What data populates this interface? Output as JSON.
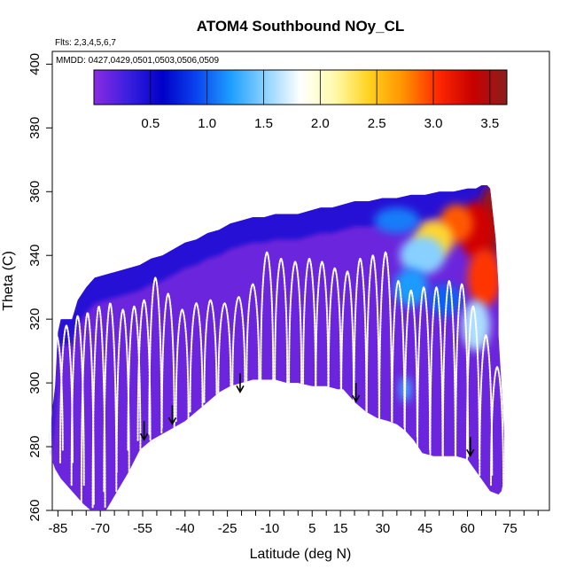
{
  "chart_data": {
    "type": "heatmap",
    "title": "ATOM4 Southbound NOy_CL",
    "flights_note": "Flts: 2,3,4,5,6,7",
    "dates_note": "MMDD: 0427,0429,0501,0503,0506,0509",
    "xlabel": "Latitude (deg N)",
    "ylabel": "Theta (C)",
    "xlim": [
      -87,
      89
    ],
    "ylim": [
      260,
      404
    ],
    "x_ticks": [
      -85,
      -70,
      -55,
      -40,
      -25,
      -10,
      5,
      15,
      30,
      45,
      60,
      75
    ],
    "x_tick_labels": [
      "-85",
      "-70",
      "-55",
      "-40",
      "-25",
      "-10",
      "5",
      "15",
      "30",
      "45",
      "60",
      "75"
    ],
    "x_minor_step": 5,
    "y_ticks": [
      260,
      280,
      300,
      320,
      340,
      360,
      380,
      400
    ],
    "y_tick_labels": [
      "260",
      "280",
      "300",
      "320",
      "340",
      "360",
      "380",
      "400"
    ],
    "colorbar": {
      "range": [
        0.0,
        3.65
      ],
      "ticks": [
        0.5,
        1.0,
        1.5,
        2.0,
        2.5,
        3.0,
        3.5
      ],
      "tick_labels": [
        "0.5",
        "1.0",
        "1.5",
        "2.0",
        "2.5",
        "3.0",
        "3.5"
      ],
      "colors": [
        "#8a2be2",
        "#3a1fe0",
        "#0000c8",
        "#0a46f0",
        "#1ea0ff",
        "#8fd3ff",
        "#ffffff",
        "#fffaaa",
        "#ffd21e",
        "#ff9100",
        "#ff2800",
        "#c80000",
        "#8c1e1e"
      ]
    },
    "field_upper_boundary": [
      [
        -88,
        284
      ],
      [
        -86,
        299
      ],
      [
        -85,
        316
      ],
      [
        -84,
        320
      ],
      [
        -80,
        320
      ],
      [
        -78,
        326
      ],
      [
        -75,
        330
      ],
      [
        -72,
        333
      ],
      [
        -68,
        334
      ],
      [
        -64,
        335
      ],
      [
        -60,
        336
      ],
      [
        -56,
        337
      ],
      [
        -52,
        339
      ],
      [
        -48,
        340
      ],
      [
        -44,
        342
      ],
      [
        -40,
        344
      ],
      [
        -36,
        345
      ],
      [
        -32,
        347
      ],
      [
        -28,
        348
      ],
      [
        -24,
        350
      ],
      [
        -20,
        351
      ],
      [
        -16,
        352
      ],
      [
        -12,
        352
      ],
      [
        -8,
        353
      ],
      [
        -4,
        353
      ],
      [
        0,
        353
      ],
      [
        4,
        354
      ],
      [
        8,
        355
      ],
      [
        12,
        355
      ],
      [
        16,
        356
      ],
      [
        20,
        357
      ],
      [
        25,
        357
      ],
      [
        30,
        358
      ],
      [
        35,
        358
      ],
      [
        40,
        359
      ],
      [
        45,
        359
      ],
      [
        50,
        360
      ],
      [
        55,
        360
      ],
      [
        60,
        361
      ],
      [
        63,
        361
      ],
      [
        65,
        362
      ],
      [
        67,
        362
      ],
      [
        68,
        361
      ]
    ],
    "field_lower_boundary": [
      [
        -88,
        278
      ],
      [
        -86,
        273
      ],
      [
        -84,
        270
      ],
      [
        -80,
        266
      ],
      [
        -76,
        262
      ],
      [
        -72,
        259
      ],
      [
        -68,
        260
      ],
      [
        -64,
        266
      ],
      [
        -60,
        272
      ],
      [
        -56,
        279
      ],
      [
        -52,
        282
      ],
      [
        -48,
        284
      ],
      [
        -44,
        286
      ],
      [
        -40,
        288
      ],
      [
        -36,
        291
      ],
      [
        -32,
        294
      ],
      [
        -28,
        297
      ],
      [
        -24,
        299
      ],
      [
        -20,
        300
      ],
      [
        -16,
        301
      ],
      [
        -12,
        301
      ],
      [
        -8,
        301
      ],
      [
        -4,
        300
      ],
      [
        0,
        300
      ],
      [
        5,
        299
      ],
      [
        10,
        299
      ],
      [
        14,
        298
      ],
      [
        16,
        298
      ],
      [
        20,
        294
      ],
      [
        24,
        291
      ],
      [
        28,
        289
      ],
      [
        32,
        288
      ],
      [
        35,
        287
      ],
      [
        38,
        285
      ],
      [
        41,
        282
      ],
      [
        44,
        278
      ],
      [
        48,
        277
      ],
      [
        52,
        277
      ],
      [
        56,
        277
      ],
      [
        60,
        276
      ],
      [
        64,
        271
      ],
      [
        68,
        266
      ],
      [
        71,
        265
      ],
      [
        72,
        266
      ],
      [
        73,
        270
      ]
    ],
    "field_right_edge": [
      [
        68,
        361
      ],
      [
        70,
        345
      ],
      [
        71,
        330
      ],
      [
        71,
        315
      ],
      [
        72,
        300
      ],
      [
        73,
        284
      ],
      [
        73,
        270
      ]
    ],
    "enhancement_regions": [
      {
        "cx": 68,
        "cy": 350,
        "rx": 4,
        "ry": 12,
        "value": 3.6
      },
      {
        "cx": 63,
        "cy": 348,
        "rx": 6,
        "ry": 9,
        "value": 3.3
      },
      {
        "cx": 56,
        "cy": 350,
        "rx": 6,
        "ry": 6,
        "value": 2.9
      },
      {
        "cx": 48,
        "cy": 345,
        "rx": 7,
        "ry": 6,
        "value": 2.4
      },
      {
        "cx": 66,
        "cy": 333,
        "rx": 6,
        "ry": 9,
        "value": 3.0
      },
      {
        "cx": 44,
        "cy": 340,
        "rx": 8,
        "ry": 6,
        "value": 1.5
      },
      {
        "cx": 40,
        "cy": 330,
        "rx": 6,
        "ry": 6,
        "value": 1.2
      },
      {
        "cx": 63,
        "cy": 318,
        "rx": 5,
        "ry": 8,
        "value": 1.6
      },
      {
        "cx": 35,
        "cy": 351,
        "rx": 8,
        "ry": 4,
        "value": 1.1
      },
      {
        "cx": 52,
        "cy": 326,
        "rx": 6,
        "ry": 5,
        "value": 1.0
      },
      {
        "cx": 38,
        "cy": 298,
        "rx": 2,
        "ry": 4,
        "value": 1.3
      }
    ],
    "profile_centers_lat": [
      -85.5,
      -82,
      -78,
      -74.5,
      -70.5,
      -66.5,
      -62,
      -58,
      -54.5,
      -50.5,
      -46,
      -41,
      -36,
      -31,
      -26,
      -21,
      -16,
      -11,
      -6,
      -1,
      4,
      8.5,
      13,
      17.5,
      22,
      26.5,
      31,
      35.5,
      40,
      44.5,
      49,
      53.5,
      58,
      62,
      66.5,
      70.5
    ],
    "profile_top_theta": [
      315,
      318,
      321,
      322,
      324,
      325,
      323,
      324,
      326,
      333,
      328,
      323,
      325,
      326,
      325,
      327,
      331,
      341,
      339,
      338,
      339,
      338,
      336,
      335,
      339,
      340,
      341,
      332,
      329,
      330,
      330,
      332,
      331,
      324,
      315,
      305
    ],
    "profile_bottom_theta": [
      279,
      275,
      268,
      262,
      261,
      266,
      272,
      279,
      282,
      284,
      286,
      288,
      291,
      294,
      297,
      299,
      300,
      301,
      300,
      300,
      299,
      298,
      298,
      294,
      291,
      289,
      288,
      286,
      283,
      279,
      277,
      277,
      277,
      276,
      271,
      268
    ],
    "arrows": [
      {
        "lat": -54.5,
        "theta": 288
      },
      {
        "lat": -44.5,
        "theta": 293
      },
      {
        "lat": -20.5,
        "theta": 303
      },
      {
        "lat": 20.5,
        "theta": 300
      },
      {
        "lat": 61,
        "theta": 283
      }
    ]
  }
}
